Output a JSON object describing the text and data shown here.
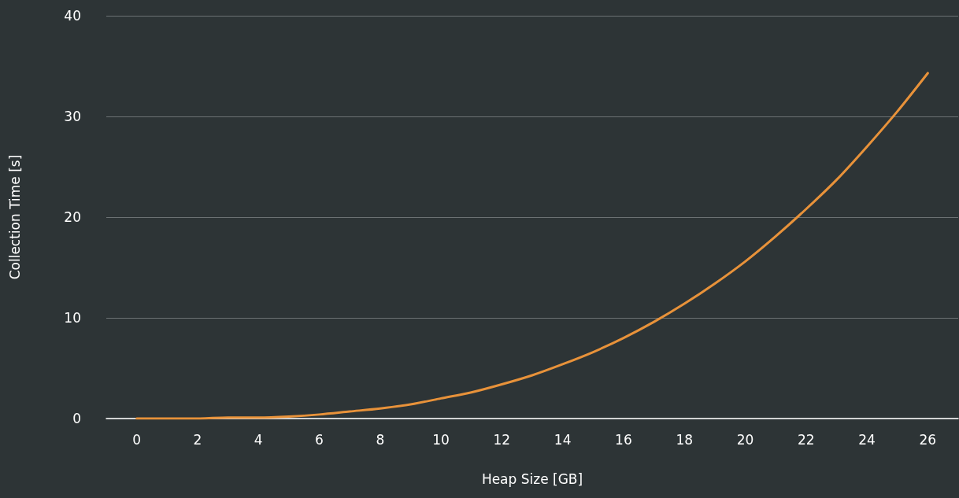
{
  "chart_data": {
    "type": "line",
    "xlabel": "Heap Size [GB]",
    "ylabel": "Collection Time [s]",
    "x": [
      0,
      1,
      2,
      3,
      4,
      5,
      6,
      7,
      8,
      9,
      10,
      11,
      12,
      13,
      14,
      15,
      16,
      17,
      18,
      19,
      20,
      21,
      22,
      23,
      24,
      25,
      26
    ],
    "series": [
      {
        "color": "#e8923a",
        "values": [
          0,
          0,
          0,
          0.1,
          0.1,
          0.2,
          0.4,
          0.7,
          1.0,
          1.4,
          2.0,
          2.6,
          3.4,
          4.3,
          5.4,
          6.6,
          8.0,
          9.6,
          11.4,
          13.4,
          15.6,
          18.1,
          20.8,
          23.7,
          27.0,
          30.5,
          34.3
        ]
      }
    ],
    "xlim": [
      -1,
      27
    ],
    "xticks": [
      0,
      2,
      4,
      6,
      8,
      10,
      12,
      14,
      16,
      18,
      20,
      22,
      24,
      26
    ],
    "ylim": [
      0,
      40
    ],
    "yticks": [
      0,
      10,
      20,
      30,
      40
    ],
    "grid": "y",
    "marker": "none",
    "line_style": "solid"
  }
}
